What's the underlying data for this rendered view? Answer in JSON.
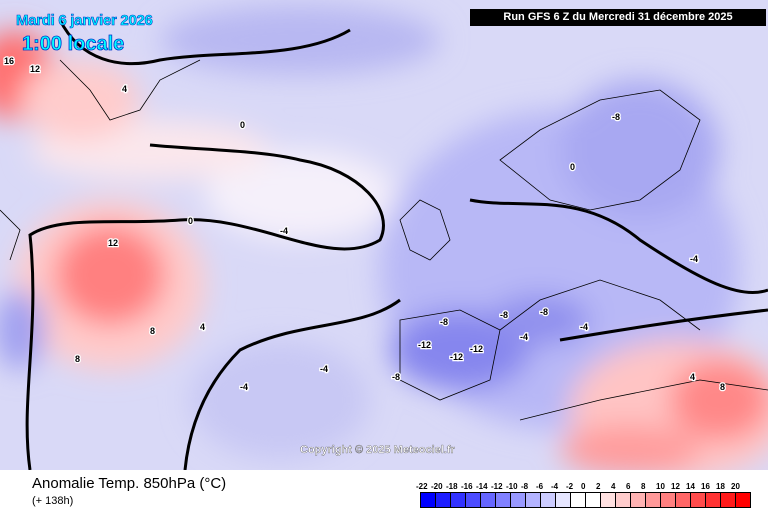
{
  "header": {
    "date": "Mardi 6 janvier 2026",
    "time": "1:00 locale",
    "run": "Run GFS 6 Z du Mercredi 31 décembre 2025"
  },
  "copyright": "Copyright © 2025 Meteociel.fr",
  "footer": {
    "title": "Anomalie Temp. 850hPa (°C)",
    "lead": "(+ 138h)"
  },
  "legend": {
    "labels": [
      "-22",
      "-20",
      "-18",
      "-16",
      "-14",
      "-12",
      "-10",
      "-8",
      "-6",
      "-4",
      "-2",
      "0",
      "2",
      "4",
      "6",
      "8",
      "10",
      "12",
      "14",
      "16",
      "18",
      "20"
    ],
    "colors": [
      "#0000ff",
      "#1e1eff",
      "#3232ff",
      "#4c4cff",
      "#6666ff",
      "#8080ff",
      "#9999ff",
      "#b3b3ff",
      "#ccccff",
      "#e6e6ff",
      "#ffffff",
      "#ffffff",
      "#ffe0e0",
      "#ffcccc",
      "#ffb3b3",
      "#ff9999",
      "#ff8080",
      "#ff6666",
      "#ff4c4c",
      "#ff3333",
      "#ff1a1a",
      "#ff0000"
    ]
  },
  "contour_labels": [
    "16",
    "12",
    "12",
    "8",
    "4",
    "0",
    "-4",
    "-8",
    "-12",
    "-12",
    "-12",
    "-8",
    "-4",
    "0",
    "-8",
    "-4",
    "4",
    "8",
    "8",
    "4",
    "0",
    "-4",
    "-4",
    "-8",
    "-8",
    "-4"
  ]
}
